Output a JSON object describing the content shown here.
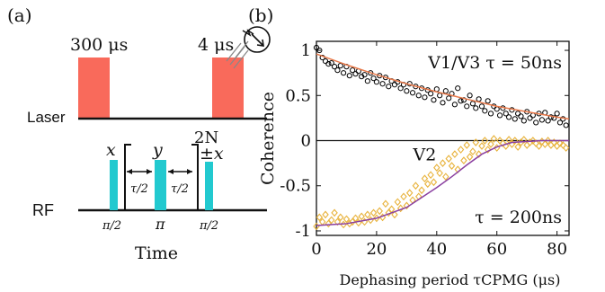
{
  "panel_a": {
    "label": "(a)",
    "laser_label": "Laser",
    "rf_label": "RF",
    "pulse1_duration": "300 μs",
    "pulse2_duration": "4 μs",
    "x_phase": "x",
    "y_phase": "y",
    "repeat_label": "2N",
    "final_phase": "±x",
    "tau_over_2": "τ/2",
    "pi_over_2": "π/2",
    "pi": "π",
    "time_label": "Time",
    "colors": {
      "laser_pulse": "#f96a5b",
      "rf_pulse": "#22c9cf"
    }
  },
  "panel_b": {
    "label": "(b)",
    "chart_data": {
      "type": "scatter",
      "xlabel": "Dephasing period τCPMG (μs)",
      "ylabel": "Coherence",
      "xlim": [
        0,
        84
      ],
      "ylim": [
        -1.05,
        1.1
      ],
      "xticks": [
        "0",
        "20",
        "40",
        "60",
        "80"
      ],
      "yticks": [
        "1",
        "0.5",
        "0",
        "-0.5",
        "-1"
      ],
      "grid": false,
      "annotations": [
        "V1/V3  τ = 50ns",
        "V2",
        "τ = 200ns"
      ],
      "series": [
        {
          "name": "V1/V3",
          "marker": "circle",
          "color": "#000000",
          "x": [
            0,
            1,
            2,
            3,
            4,
            5,
            6,
            7,
            8,
            9,
            10,
            11,
            12,
            13,
            14,
            15,
            16,
            17,
            18,
            19,
            20,
            21,
            22,
            23,
            24,
            25,
            26,
            27,
            28,
            29,
            30,
            31,
            32,
            33,
            34,
            35,
            36,
            37,
            38,
            39,
            40,
            41,
            42,
            43,
            44,
            45,
            46,
            47,
            48,
            49,
            50,
            51,
            52,
            53,
            54,
            55,
            56,
            57,
            58,
            59,
            60,
            61,
            62,
            63,
            64,
            65,
            66,
            67,
            68,
            69,
            70,
            71,
            72,
            73,
            74,
            75,
            76,
            77,
            78,
            79,
            80,
            81,
            82,
            83
          ],
          "y": [
            1.03,
            1.0,
            0.92,
            0.88,
            0.85,
            0.86,
            0.82,
            0.78,
            0.83,
            0.75,
            0.82,
            0.72,
            0.78,
            0.74,
            0.77,
            0.71,
            0.73,
            0.66,
            0.75,
            0.69,
            0.65,
            0.72,
            0.63,
            0.7,
            0.6,
            0.66,
            0.62,
            0.65,
            0.58,
            0.62,
            0.55,
            0.63,
            0.53,
            0.6,
            0.5,
            0.58,
            0.48,
            0.56,
            0.52,
            0.45,
            0.57,
            0.5,
            0.42,
            0.55,
            0.47,
            0.52,
            0.4,
            0.58,
            0.44,
            0.45,
            0.38,
            0.5,
            0.41,
            0.36,
            0.46,
            0.38,
            0.33,
            0.44,
            0.3,
            0.38,
            0.35,
            0.28,
            0.36,
            0.3,
            0.26,
            0.34,
            0.24,
            0.3,
            0.27,
            0.22,
            0.32,
            0.25,
            0.28,
            0.2,
            0.3,
            0.23,
            0.31,
            0.22,
            0.26,
            0.25,
            0.3,
            0.2,
            0.24,
            0.17
          ]
        },
        {
          "name": "V1/V3 fit",
          "type": "line",
          "color": "#e8794a",
          "x": [
            0,
            10,
            20,
            30,
            40,
            50,
            60,
            70,
            80,
            84
          ],
          "y": [
            0.96,
            0.84,
            0.73,
            0.63,
            0.54,
            0.46,
            0.38,
            0.32,
            0.26,
            0.24
          ]
        },
        {
          "name": "V2",
          "marker": "diamond",
          "color": "#e8b23a",
          "x": [
            0,
            1,
            2,
            3,
            4,
            5,
            6,
            7,
            8,
            9,
            10,
            11,
            12,
            13,
            14,
            15,
            16,
            17,
            18,
            19,
            20,
            21,
            22,
            23,
            24,
            25,
            26,
            27,
            28,
            29,
            30,
            31,
            32,
            33,
            34,
            35,
            36,
            37,
            38,
            39,
            40,
            41,
            42,
            43,
            44,
            45,
            46,
            47,
            48,
            49,
            50,
            51,
            52,
            53,
            54,
            55,
            56,
            57,
            58,
            59,
            60,
            61,
            62,
            63,
            64,
            65,
            66,
            67,
            68,
            69,
            70,
            71,
            72,
            73,
            74,
            75,
            76,
            77,
            78,
            79,
            80,
            81,
            82,
            83
          ],
          "y": [
            -0.95,
            -0.85,
            -0.9,
            -0.82,
            -0.92,
            -0.88,
            -0.8,
            -0.9,
            -0.85,
            -0.93,
            -0.87,
            -0.92,
            -0.9,
            -0.86,
            -0.91,
            -0.84,
            -0.9,
            -0.82,
            -0.88,
            -0.8,
            -0.86,
            -0.78,
            -0.85,
            -0.7,
            -0.8,
            -0.76,
            -0.82,
            -0.68,
            -0.75,
            -0.62,
            -0.72,
            -0.58,
            -0.66,
            -0.5,
            -0.62,
            -0.55,
            -0.42,
            -0.48,
            -0.38,
            -0.46,
            -0.3,
            -0.36,
            -0.25,
            -0.4,
            -0.2,
            -0.28,
            -0.15,
            -0.32,
            -0.1,
            -0.22,
            -0.05,
            -0.18,
            -0.12,
            -0.02,
            -0.15,
            -0.06,
            0.0,
            -0.1,
            -0.04,
            0.02,
            -0.08,
            0.0,
            -0.03,
            -0.06,
            0.01,
            -0.04,
            0.0,
            -0.07,
            -0.02,
            0.01,
            -0.05,
            -0.02,
            0.0,
            -0.03,
            -0.06,
            -0.01,
            -0.04,
            0.0,
            -0.05,
            -0.02,
            -0.06,
            -0.03,
            -0.05,
            -0.08
          ]
        },
        {
          "name": "V2 fit",
          "type": "line",
          "color": "#8a3fa0",
          "x": [
            0,
            10,
            20,
            30,
            40,
            45,
            50,
            55,
            60,
            65,
            70,
            75,
            80,
            84
          ],
          "y": [
            -0.94,
            -0.92,
            -0.86,
            -0.74,
            -0.52,
            -0.4,
            -0.27,
            -0.15,
            -0.07,
            -0.02,
            -0.01,
            0.0,
            0.0,
            0.0
          ]
        }
      ]
    }
  }
}
